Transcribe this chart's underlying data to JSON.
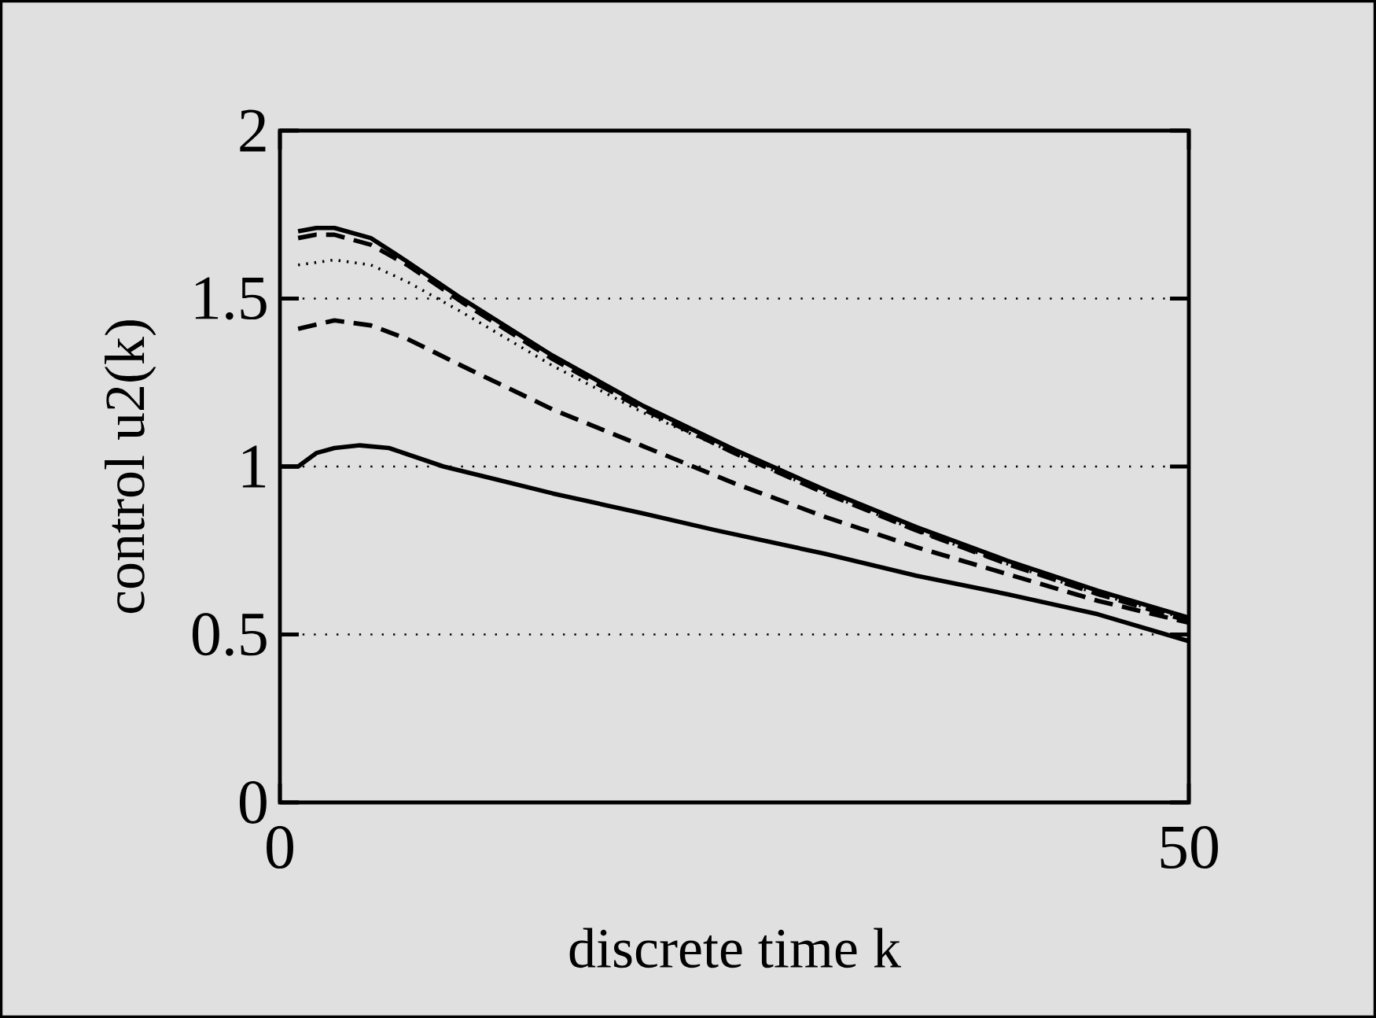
{
  "chart_data": {
    "type": "line",
    "xlabel": "discrete time k",
    "ylabel": "control u2(k)",
    "xlim": [
      0,
      50
    ],
    "ylim": [
      0,
      2
    ],
    "xticks": [
      0,
      50
    ],
    "yticks": [
      0,
      0.5,
      1,
      1.5,
      2
    ],
    "grid": "y",
    "marker": "none",
    "series": [
      {
        "color": "#000000",
        "line_style": "solid",
        "x": [
          1,
          2,
          3,
          5,
          7,
          10,
          15,
          20,
          25,
          30,
          35,
          40,
          45,
          50
        ],
        "values": [
          1.7,
          1.71,
          1.71,
          1.68,
          1.61,
          1.5,
          1.33,
          1.18,
          1.05,
          0.93,
          0.82,
          0.72,
          0.63,
          0.55
        ]
      },
      {
        "color": "#000000",
        "line_style": "dashed",
        "x": [
          1,
          2,
          3,
          5,
          7,
          10,
          15,
          20,
          25,
          30,
          35,
          40,
          45,
          50
        ],
        "values": [
          1.68,
          1.69,
          1.69,
          1.66,
          1.6,
          1.49,
          1.32,
          1.17,
          1.04,
          0.92,
          0.81,
          0.71,
          0.62,
          0.54
        ]
      },
      {
        "color": "#000000",
        "line_style": "dotted",
        "x": [
          1,
          3,
          5,
          7,
          10,
          15,
          20,
          25,
          30,
          35,
          40,
          45,
          50
        ],
        "values": [
          1.6,
          1.615,
          1.6,
          1.55,
          1.46,
          1.3,
          1.16,
          1.04,
          0.92,
          0.81,
          0.71,
          0.62,
          0.545
        ]
      },
      {
        "color": "#000000",
        "line_style": "dashed",
        "x": [
          1,
          3,
          5,
          7,
          10,
          15,
          20,
          25,
          30,
          35,
          40,
          45,
          50
        ],
        "values": [
          1.41,
          1.435,
          1.42,
          1.38,
          1.3,
          1.17,
          1.06,
          0.95,
          0.85,
          0.76,
          0.68,
          0.6,
          0.535
        ]
      },
      {
        "color": "#000000",
        "line_style": "solid",
        "x": [
          0,
          1,
          2,
          3,
          4.4,
          6,
          9,
          12,
          15,
          20,
          24,
          30,
          35,
          40,
          45,
          50
        ],
        "values": [
          1.0,
          1.0,
          1.04,
          1.055,
          1.063,
          1.055,
          1.0,
          0.96,
          0.92,
          0.86,
          0.81,
          0.74,
          0.675,
          0.62,
          0.56,
          0.48
        ]
      }
    ]
  }
}
